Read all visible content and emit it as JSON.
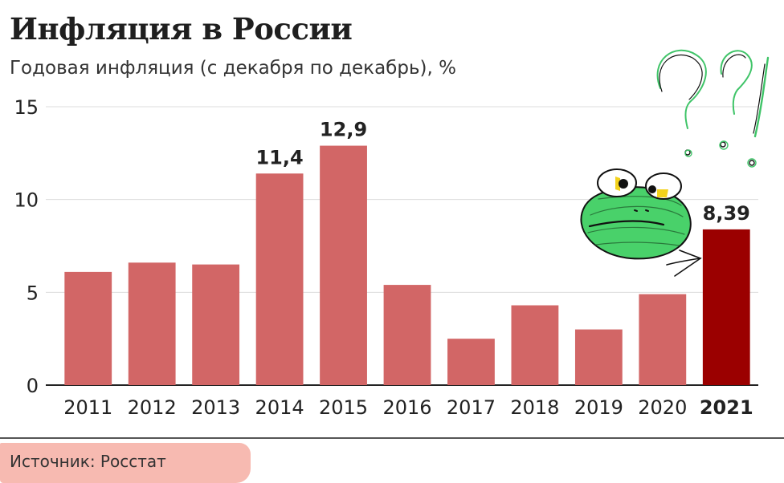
{
  "header": {
    "title": "Инфляция в России",
    "subtitle": "Годовая инфляция (с декабря по декабрь), %"
  },
  "footer": {
    "source": "Источник: Росстат"
  },
  "colors": {
    "bar": "#d26666",
    "highlight": "#9b0000",
    "grid": "#dcdcdc",
    "axis": "#222222",
    "frog_fill": "#49d16a",
    "doodle_green": "#3fc468",
    "doodle_black": "#111111",
    "frog_eye_yellow": "#f3d21d",
    "source_band": "#f6b3a8"
  },
  "chart_data": {
    "type": "bar",
    "title": "Инфляция в России",
    "subtitle": "Годовая инфляция (с декабря по декабрь), %",
    "xlabel": "",
    "ylabel": "%",
    "ylim": [
      0,
      15
    ],
    "yticks": [
      0,
      5,
      10,
      15
    ],
    "grid": true,
    "categories": [
      "2011",
      "2012",
      "2013",
      "2014",
      "2015",
      "2016",
      "2017",
      "2018",
      "2019",
      "2020",
      "2021"
    ],
    "values": [
      6.1,
      6.6,
      6.5,
      11.4,
      12.9,
      5.4,
      2.5,
      4.3,
      3.0,
      4.9,
      8.39
    ],
    "highlight_category": "2021",
    "data_labels": [
      {
        "category": "2014",
        "text": "11,4"
      },
      {
        "category": "2015",
        "text": "12,9"
      },
      {
        "category": "2021",
        "text": "8,39"
      }
    ],
    "annotations": [
      {
        "type": "doodle",
        "description": "frog",
        "near": "2021"
      },
      {
        "type": "doodle",
        "description": "??!",
        "near": "2021"
      },
      {
        "type": "doodle",
        "description": "arrow",
        "near": "2021"
      }
    ]
  }
}
